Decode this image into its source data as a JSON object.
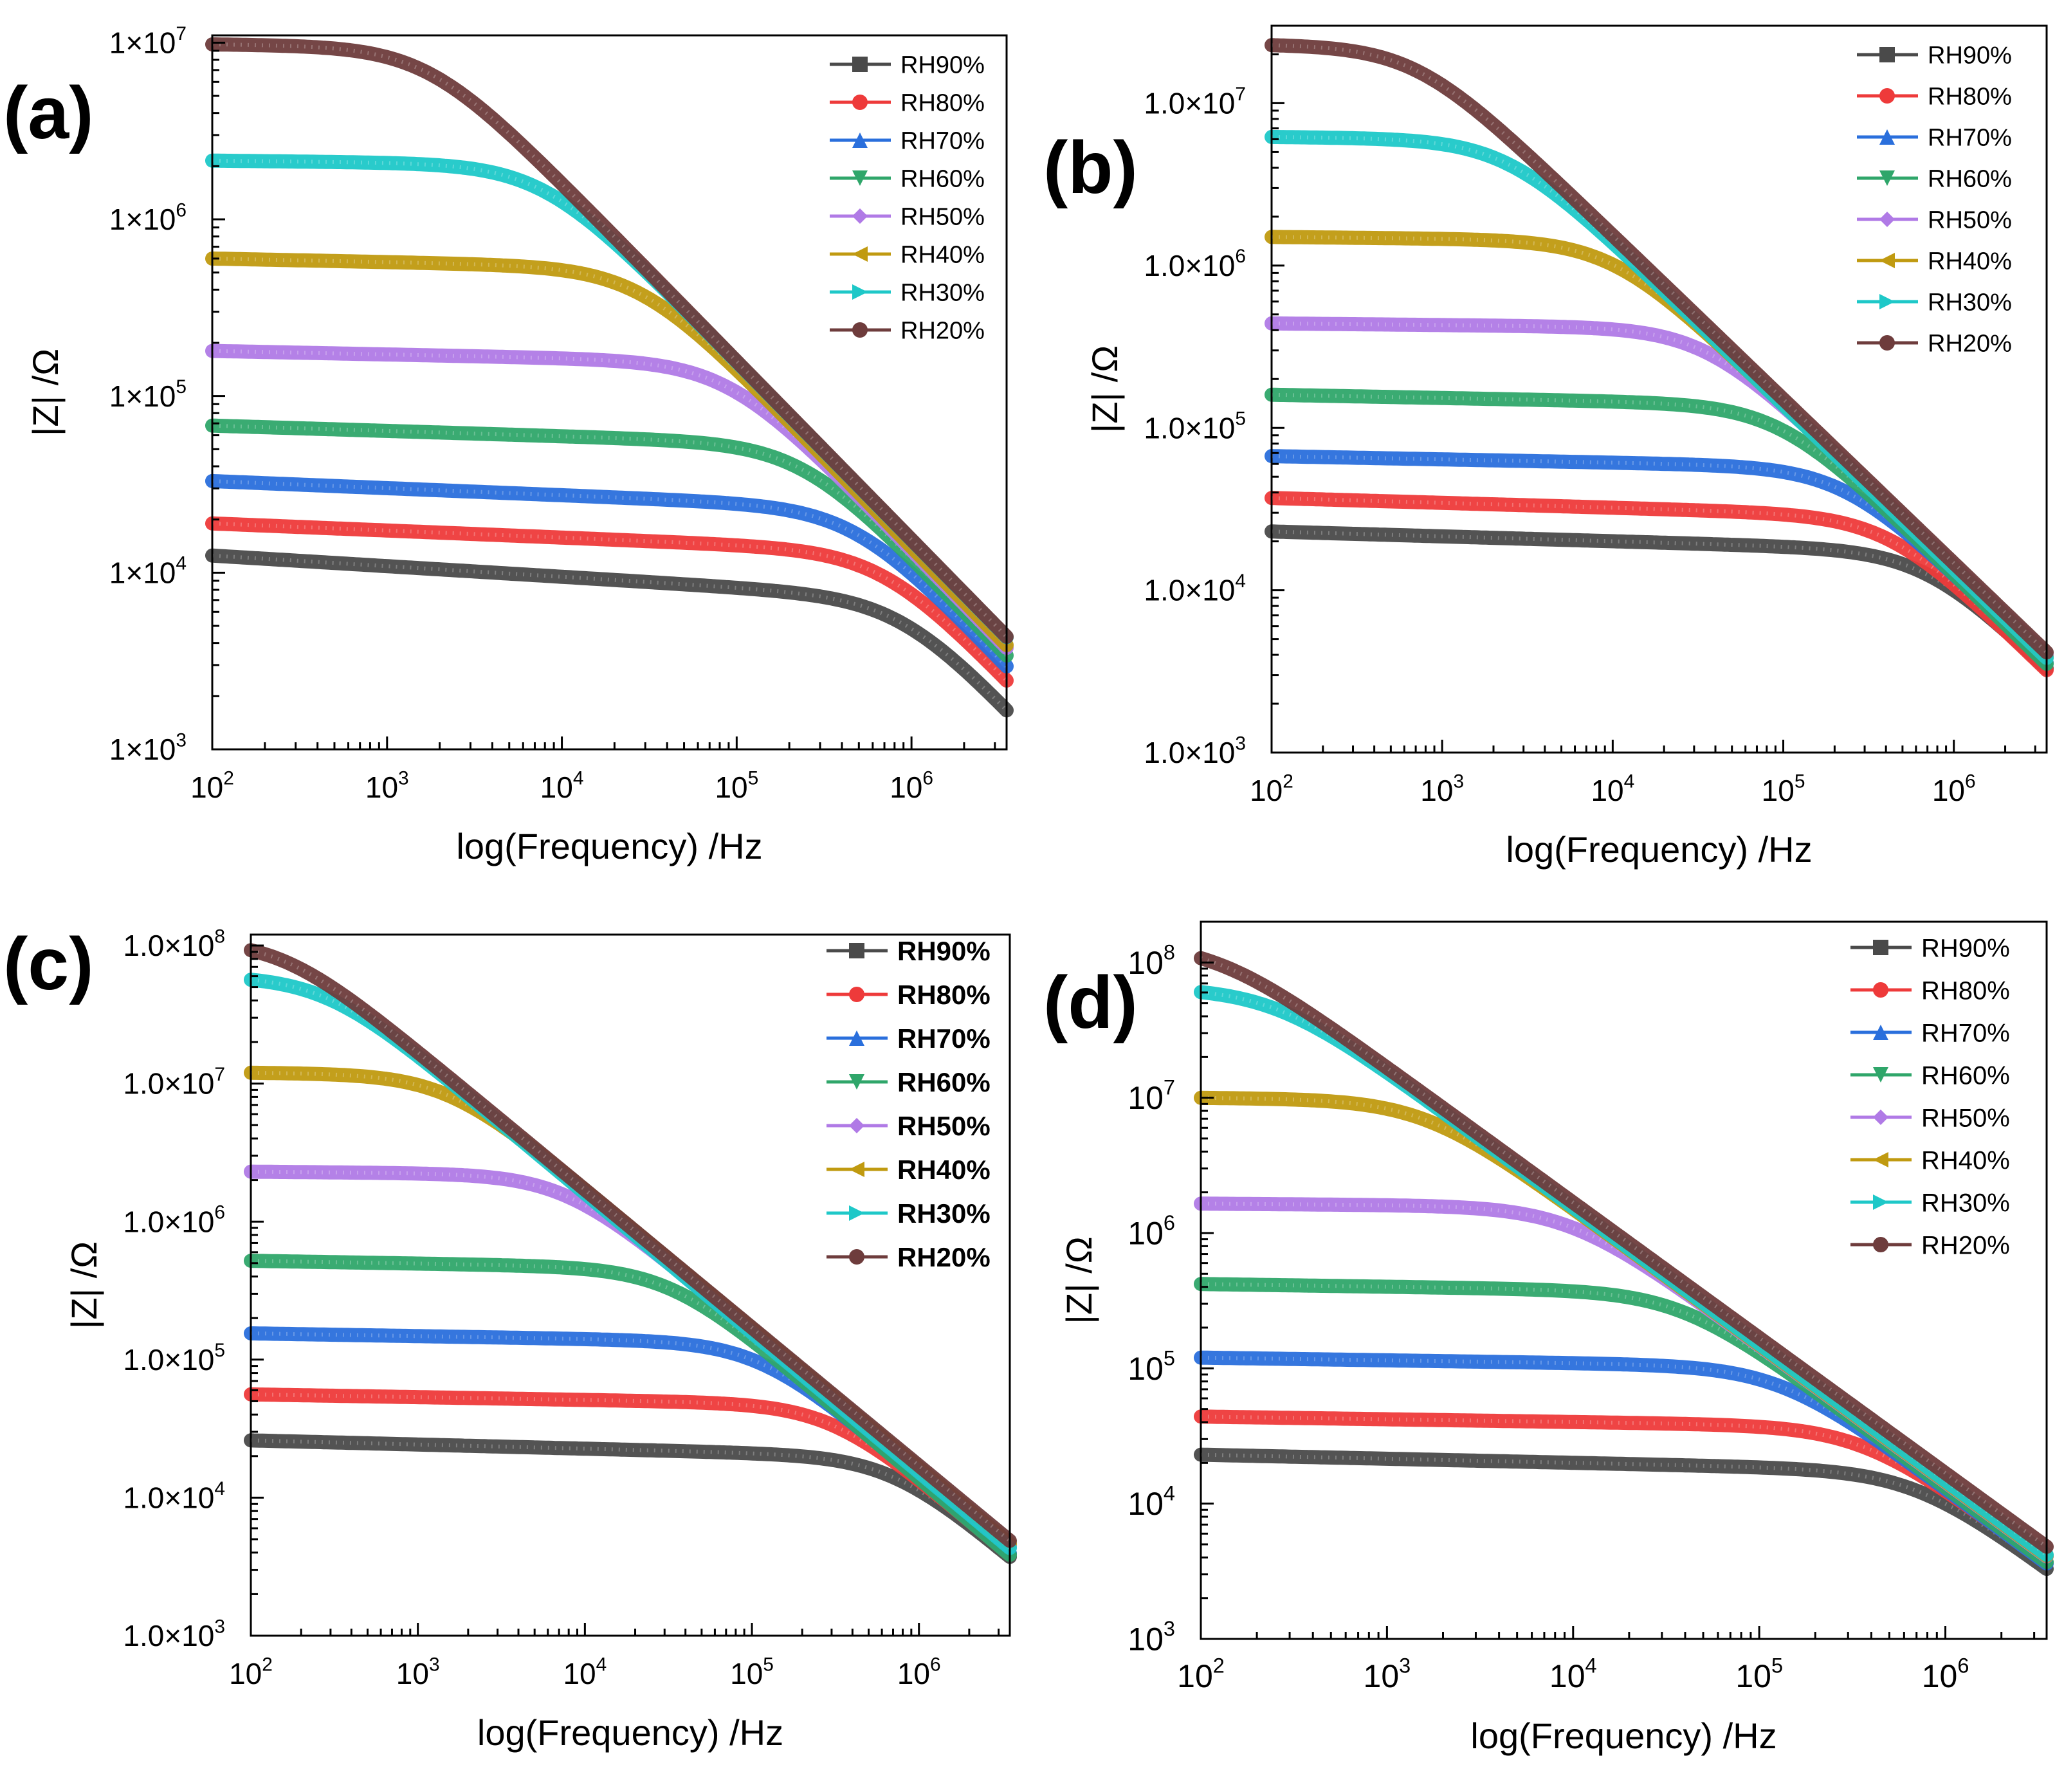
{
  "figure": {
    "legend_labels": [
      "RH90%",
      "RH80%",
      "RH70%",
      "RH60%",
      "RH50%",
      "RH40%",
      "RH30%",
      "RH20%"
    ],
    "series_colors": {
      "RH90%": "#4a4a4a",
      "RH80%": "#ee3a3a",
      "RH70%": "#2a6fdc",
      "RH60%": "#2fa66a",
      "RH50%": "#b07ae6",
      "RH40%": "#c09a10",
      "RH30%": "#1ec8c8",
      "RH20%": "#6e3c3c"
    }
  },
  "chart_data": [
    {
      "panel_label": "(a)",
      "type": "line",
      "xlabel": "log(Frequency) /Hz",
      "ylabel": "|Z| /Ω",
      "xscale": "log",
      "yscale": "log",
      "xlim": [
        100,
        3500000
      ],
      "ylim": [
        1000,
        11000000
      ],
      "x_ticks": [
        100,
        1000,
        10000,
        100000,
        1000000
      ],
      "x_tick_labels": [
        [
          "10",
          "2"
        ],
        [
          "10",
          "3"
        ],
        [
          "10",
          "4"
        ],
        [
          "10",
          "5"
        ],
        [
          "10",
          "6"
        ]
      ],
      "y_ticks": [
        1000,
        10000,
        100000,
        1000000,
        10000000
      ],
      "y_tick_labels": [
        [
          "1×10",
          "3"
        ],
        [
          "1×10",
          "4"
        ],
        [
          "1×10",
          "5"
        ],
        [
          "1×10",
          "6"
        ],
        [
          "1×10",
          "7"
        ]
      ],
      "legend_bold": false,
      "legend_location": "top-right",
      "series": [
        {
          "name": "RH90%",
          "r_plateau": 12500,
          "f_c": 900000,
          "slope_exp": 0.06
        },
        {
          "name": "RH80%",
          "r_plateau": 19000,
          "f_c": 700000,
          "slope_exp": 0.04
        },
        {
          "name": "RH70%",
          "r_plateau": 33000,
          "f_c": 480000,
          "slope_exp": 0.04
        },
        {
          "name": "RH60%",
          "r_plateau": 68000,
          "f_c": 240000,
          "slope_exp": 0.03
        },
        {
          "name": "RH50%",
          "r_plateau": 180000,
          "f_c": 90000,
          "slope_exp": 0.02
        },
        {
          "name": "RH40%",
          "r_plateau": 600000,
          "f_c": 28000,
          "slope_exp": 0.02
        },
        {
          "name": "RH30%",
          "r_plateau": 2150000,
          "f_c": 7800,
          "slope_exp": 0.01
        },
        {
          "name": "RH20%",
          "r_plateau": 9800000,
          "f_c": 1720,
          "slope_exp": 0.01
        }
      ]
    },
    {
      "panel_label": "(b)",
      "type": "line",
      "xlabel": "log(Frequency) /Hz",
      "ylabel": "|Z| /Ω",
      "xscale": "log",
      "yscale": "log",
      "xlim": [
        100,
        3500000
      ],
      "ylim": [
        1000,
        30000000
      ],
      "x_ticks": [
        100,
        1000,
        10000,
        100000,
        1000000
      ],
      "x_tick_labels": [
        [
          "10",
          "2"
        ],
        [
          "10",
          "3"
        ],
        [
          "10",
          "4"
        ],
        [
          "10",
          "5"
        ],
        [
          "10",
          "6"
        ]
      ],
      "y_ticks": [
        1000,
        10000,
        100000,
        1000000,
        10000000
      ],
      "y_tick_labels": [
        [
          "1.0×10",
          "3"
        ],
        [
          "1.0×10",
          "4"
        ],
        [
          "1.0×10",
          "5"
        ],
        [
          "1.0×10",
          "6"
        ],
        [
          "1.0×10",
          "7"
        ]
      ],
      "legend_bold": false,
      "legend_location": "top-right",
      "series": [
        {
          "name": "RH90%",
          "r_plateau": 23000,
          "f_c": 700000,
          "slope_exp": 0.03
        },
        {
          "name": "RH80%",
          "r_plateau": 37000,
          "f_c": 420000,
          "slope_exp": 0.03
        },
        {
          "name": "RH70%",
          "r_plateau": 67000,
          "f_c": 230000,
          "slope_exp": 0.02
        },
        {
          "name": "RH60%",
          "r_plateau": 160000,
          "f_c": 95000,
          "slope_exp": 0.02
        },
        {
          "name": "RH50%",
          "r_plateau": 440000,
          "f_c": 35000,
          "slope_exp": 0.01
        },
        {
          "name": "RH40%",
          "r_plateau": 1500000,
          "f_c": 10000,
          "slope_exp": 0.01
        },
        {
          "name": "RH30%",
          "r_plateau": 6200000,
          "f_c": 2400,
          "slope_exp": 0.01
        },
        {
          "name": "RH20%",
          "r_plateau": 23000000,
          "f_c": 700,
          "slope_exp": 0.01
        }
      ]
    },
    {
      "panel_label": "(c)",
      "type": "line",
      "xlabel": "log(Frequency) /Hz",
      "ylabel": "|Z| /Ω",
      "xscale": "log",
      "yscale": "log",
      "xlim": [
        100,
        3500000
      ],
      "ylim": [
        1000,
        120000000
      ],
      "x_ticks": [
        100,
        1000,
        10000,
        100000,
        1000000
      ],
      "x_tick_labels": [
        [
          "10",
          "2"
        ],
        [
          "10",
          "3"
        ],
        [
          "10",
          "4"
        ],
        [
          "10",
          "5"
        ],
        [
          "10",
          "6"
        ]
      ],
      "y_ticks": [
        1000,
        10000,
        100000,
        1000000,
        10000000,
        100000000
      ],
      "y_tick_labels": [
        [
          "1.0×10",
          "3"
        ],
        [
          "1.0×10",
          "4"
        ],
        [
          "1.0×10",
          "5"
        ],
        [
          "1.0×10",
          "6"
        ],
        [
          "1.0×10",
          "7"
        ],
        [
          "1.0×10",
          "8"
        ]
      ],
      "legend_bold": true,
      "legend_location": "top-right",
      "series": [
        {
          "name": "RH90%",
          "r_plateau": 26000,
          "f_c": 700000,
          "slope_exp": 0.03
        },
        {
          "name": "RH80%",
          "r_plateau": 56000,
          "f_c": 300000,
          "slope_exp": 0.02
        },
        {
          "name": "RH70%",
          "r_plateau": 155000,
          "f_c": 110000,
          "slope_exp": 0.02
        },
        {
          "name": "RH60%",
          "r_plateau": 520000,
          "f_c": 32000,
          "slope_exp": 0.02
        },
        {
          "name": "RH50%",
          "r_plateau": 2300000,
          "f_c": 7500,
          "slope_exp": 0.01
        },
        {
          "name": "RH40%",
          "r_plateau": 12000000,
          "f_c": 1500,
          "slope_exp": 0.01
        },
        {
          "name": "RH30%",
          "r_plateau": 60000000,
          "f_c": 280,
          "slope_exp": 0.01
        },
        {
          "name": "RH20%",
          "r_plateau": 110000000,
          "f_c": 155,
          "slope_exp": 0.0
        }
      ]
    },
    {
      "panel_label": "(d)",
      "type": "line",
      "xlabel": "log(Frequency) /Hz",
      "ylabel": "|Z| /Ω",
      "xscale": "log",
      "yscale": "log",
      "xlim": [
        100,
        3500000
      ],
      "ylim": [
        1000,
        200000000
      ],
      "x_ticks": [
        100,
        1000,
        10000,
        100000,
        1000000
      ],
      "x_tick_labels": [
        [
          "10",
          "2"
        ],
        [
          "10",
          "3"
        ],
        [
          "10",
          "4"
        ],
        [
          "10",
          "5"
        ],
        [
          "10",
          "6"
        ]
      ],
      "y_ticks": [
        1000,
        10000,
        100000,
        1000000,
        10000000,
        100000000
      ],
      "y_tick_labels": [
        [
          "10",
          "3"
        ],
        [
          "10",
          "4"
        ],
        [
          "10",
          "5"
        ],
        [
          "10",
          "6"
        ],
        [
          "10",
          "7"
        ],
        [
          "10",
          "8"
        ]
      ],
      "legend_bold": false,
      "legend_location": "top-right",
      "series": [
        {
          "name": "RH90%",
          "r_plateau": 23000,
          "f_c": 700000,
          "slope_exp": 0.03
        },
        {
          "name": "RH80%",
          "r_plateau": 44000,
          "f_c": 360000,
          "slope_exp": 0.02
        },
        {
          "name": "RH70%",
          "r_plateau": 120000,
          "f_c": 130000,
          "slope_exp": 0.02
        },
        {
          "name": "RH60%",
          "r_plateau": 420000,
          "f_c": 38000,
          "slope_exp": 0.02
        },
        {
          "name": "RH50%",
          "r_plateau": 1650000,
          "f_c": 9600,
          "slope_exp": 0.01
        },
        {
          "name": "RH40%",
          "r_plateau": 10000000,
          "f_c": 1600,
          "slope_exp": 0.01
        },
        {
          "name": "RH30%",
          "r_plateau": 65000000,
          "f_c": 250,
          "slope_exp": 0.01
        },
        {
          "name": "RH20%",
          "r_plateau": 140000000,
          "f_c": 120,
          "slope_exp": 0.0
        }
      ]
    }
  ]
}
